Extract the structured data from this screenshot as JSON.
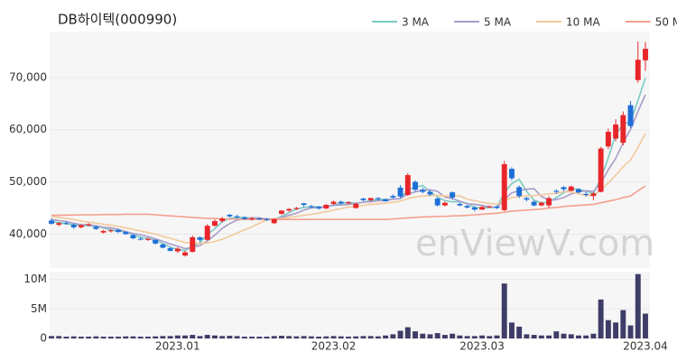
{
  "chart_data": {
    "type": "candlestick",
    "title": "DB하이텍(000990)",
    "watermark": "enViewV.com",
    "categories": [
      null,
      null,
      null,
      null,
      null,
      null,
      null,
      null,
      null,
      null,
      null,
      null,
      null,
      null,
      null,
      null,
      null,
      "2023.01",
      null,
      null,
      null,
      null,
      null,
      null,
      null,
      null,
      null,
      null,
      null,
      null,
      null,
      null,
      null,
      null,
      null,
      null,
      null,
      null,
      "2023.02",
      null,
      null,
      null,
      null,
      null,
      null,
      null,
      null,
      null,
      null,
      null,
      null,
      null,
      null,
      null,
      null,
      null,
      null,
      null,
      "2023.03",
      null,
      null,
      null,
      null,
      null,
      null,
      null,
      null,
      null,
      null,
      null,
      null,
      null,
      null,
      null,
      null,
      null,
      null,
      null,
      null,
      null,
      "2023.04"
    ],
    "ohlc": [
      [
        42600,
        43000,
        41800,
        42000
      ],
      [
        41800,
        42300,
        41500,
        42100
      ],
      [
        42100,
        42500,
        41800,
        42000
      ],
      [
        41800,
        42000,
        41000,
        41300
      ],
      [
        41300,
        41900,
        41100,
        41700
      ],
      [
        41700,
        42100,
        41500,
        41900
      ],
      [
        41400,
        41600,
        40800,
        41000
      ],
      [
        40300,
        40800,
        40100,
        40600
      ],
      [
        40600,
        41000,
        40300,
        40700
      ],
      [
        40800,
        41000,
        40200,
        40400
      ],
      [
        40400,
        40600,
        39900,
        40000
      ],
      [
        39800,
        40000,
        39000,
        39200
      ],
      [
        39100,
        39500,
        38800,
        39000
      ],
      [
        38900,
        39300,
        38700,
        39100
      ],
      [
        38900,
        39000,
        38000,
        38200
      ],
      [
        38000,
        38200,
        37300,
        37400
      ],
      [
        37300,
        37500,
        36700,
        36800
      ],
      [
        36700,
        37500,
        36400,
        37200
      ],
      [
        35900,
        36800,
        35700,
        36500
      ],
      [
        36600,
        39700,
        36500,
        39400
      ],
      [
        39400,
        39500,
        38500,
        38900
      ],
      [
        38900,
        41900,
        38800,
        41600
      ],
      [
        41600,
        42800,
        41400,
        42500
      ],
      [
        42500,
        43300,
        42200,
        43000
      ],
      [
        43700,
        43900,
        43200,
        43400
      ],
      [
        43400,
        43700,
        43000,
        43200
      ],
      [
        43200,
        43400,
        42700,
        42900
      ],
      [
        42900,
        43300,
        42600,
        43000
      ],
      [
        43000,
        43200,
        42700,
        42900
      ],
      [
        42900,
        43100,
        42500,
        42700
      ],
      [
        42100,
        43000,
        41900,
        42900
      ],
      [
        43900,
        44600,
        43700,
        44500
      ],
      [
        44500,
        45000,
        44300,
        44800
      ],
      [
        44800,
        45200,
        44600,
        45000
      ],
      [
        45900,
        46000,
        45200,
        45600
      ],
      [
        45300,
        45600,
        45000,
        45200
      ],
      [
        45200,
        45400,
        44700,
        44900
      ],
      [
        44900,
        45800,
        44800,
        45600
      ],
      [
        45800,
        46400,
        45600,
        46200
      ],
      [
        46200,
        46400,
        45700,
        45900
      ],
      [
        45900,
        46300,
        45700,
        46100
      ],
      [
        45000,
        46000,
        44900,
        45800
      ],
      [
        46800,
        47000,
        46300,
        46500
      ],
      [
        46500,
        47000,
        46300,
        46900
      ],
      [
        46900,
        47100,
        46500,
        46700
      ],
      [
        46700,
        46800,
        46200,
        46300
      ],
      [
        47300,
        47600,
        46800,
        47000
      ],
      [
        48900,
        49400,
        46900,
        47200
      ],
      [
        47500,
        51700,
        47300,
        51300
      ],
      [
        50000,
        50300,
        48200,
        48500
      ],
      [
        48500,
        48900,
        47800,
        48100
      ],
      [
        48100,
        48400,
        47300,
        47600
      ],
      [
        46800,
        47000,
        45300,
        45500
      ],
      [
        45500,
        46200,
        45300,
        46000
      ],
      [
        48000,
        48200,
        46700,
        47000
      ],
      [
        45800,
        46000,
        45300,
        45500
      ],
      [
        45400,
        45600,
        44900,
        45100
      ],
      [
        45100,
        45400,
        44400,
        44700
      ],
      [
        44700,
        45400,
        44600,
        45200
      ],
      [
        45200,
        45500,
        45000,
        45300
      ],
      [
        45300,
        45400,
        44800,
        45000
      ],
      [
        44600,
        54000,
        44400,
        53400
      ],
      [
        52500,
        52800,
        50300,
        50700
      ],
      [
        49000,
        49300,
        46900,
        47300
      ],
      [
        46900,
        47100,
        46300,
        46600
      ],
      [
        46200,
        46400,
        45300,
        45500
      ],
      [
        45500,
        46200,
        45300,
        46000
      ],
      [
        45500,
        47300,
        45000,
        46900
      ],
      [
        48300,
        48600,
        47700,
        48100
      ],
      [
        49000,
        49200,
        48200,
        48600
      ],
      [
        48300,
        49300,
        48200,
        49100
      ],
      [
        48600,
        48800,
        47800,
        48000
      ],
      [
        47700,
        48100,
        47200,
        47500
      ],
      [
        47300,
        48000,
        46500,
        47800
      ],
      [
        48100,
        56700,
        48000,
        56400
      ],
      [
        56800,
        60200,
        56300,
        59600
      ],
      [
        58300,
        62000,
        57800,
        61000
      ],
      [
        57500,
        63500,
        57000,
        62800
      ],
      [
        64700,
        65500,
        60300,
        60700
      ],
      [
        69500,
        76900,
        69000,
        73400
      ],
      [
        73300,
        76800,
        71300,
        75500
      ]
    ],
    "up_color": "#e8262a",
    "down_color": "#1d6fd8",
    "ylim": [
      33500,
      78800
    ],
    "yticks": [
      {
        "value": 40000,
        "label": "40,000"
      },
      {
        "value": 50000,
        "label": "50,000"
      },
      {
        "value": 60000,
        "label": "60,000"
      },
      {
        "value": 70000,
        "label": "70,000"
      }
    ],
    "grid": true,
    "legend": "top-right",
    "series": [
      {
        "name": "3 MA",
        "color": "#7ccac3",
        "values": [
          42400,
          42200,
          42000,
          41800,
          41700,
          41600,
          41500,
          41200,
          40800,
          40600,
          40400,
          39900,
          39400,
          39100,
          38800,
          38200,
          37500,
          37100,
          36800,
          37700,
          38300,
          40000,
          41000,
          42400,
          43000,
          43200,
          43200,
          43000,
          42900,
          42900,
          42800,
          43400,
          44100,
          44800,
          45100,
          45300,
          45200,
          45200,
          45600,
          45900,
          46100,
          45900,
          46100,
          46400,
          46700,
          46600,
          46700,
          46800,
          48500,
          49000,
          49300,
          48100,
          47100,
          46400,
          46200,
          46200,
          45900,
          45100,
          45000,
          45100,
          45200,
          47900,
          49700,
          50500,
          48200,
          46500,
          46000,
          46100,
          47000,
          47900,
          48600,
          48600,
          48200,
          47800,
          50600,
          54600,
          59000,
          61100,
          61500,
          65600,
          69900
        ]
      },
      {
        "name": "5 MA",
        "color": "#a99bc9",
        "values": [
          42800,
          42600,
          42400,
          42100,
          41800,
          41800,
          41600,
          41300,
          41200,
          40900,
          40500,
          40100,
          39900,
          39500,
          39100,
          38600,
          38100,
          37700,
          37200,
          37500,
          37800,
          38700,
          39800,
          41100,
          42000,
          42700,
          43000,
          43100,
          43100,
          42900,
          42900,
          43200,
          43600,
          44000,
          44600,
          45000,
          45100,
          45300,
          45500,
          45600,
          45700,
          45900,
          46100,
          46200,
          46400,
          46400,
          46700,
          46800,
          47700,
          48100,
          48400,
          48500,
          48200,
          47100,
          46800,
          46300,
          45800,
          45700,
          45500,
          45200,
          45100,
          46700,
          47900,
          48300,
          48600,
          48700,
          47200,
          46500,
          46600,
          47000,
          47700,
          48100,
          48300,
          48200,
          49800,
          52300,
          54500,
          57500,
          60100,
          63500,
          66700
        ]
      },
      {
        "name": "10 MA",
        "color": "#f3c99b",
        "values": [
          43400,
          43200,
          43000,
          42800,
          42500,
          42300,
          42100,
          41900,
          41700,
          41500,
          41200,
          40900,
          40600,
          40300,
          40000,
          39600,
          39200,
          38800,
          38400,
          38300,
          38200,
          38300,
          38600,
          39000,
          39600,
          40200,
          40800,
          41400,
          42100,
          42700,
          42900,
          43000,
          43200,
          43400,
          43600,
          43800,
          44000,
          44300,
          44600,
          44900,
          45200,
          45300,
          45500,
          45700,
          45800,
          45900,
          46100,
          46300,
          46800,
          47100,
          47300,
          47400,
          47400,
          47300,
          47400,
          47300,
          46700,
          46400,
          46100,
          45900,
          45700,
          46500,
          47000,
          47200,
          47300,
          47400,
          47500,
          47700,
          47800,
          48100,
          48100,
          47700,
          47400,
          47400,
          48400,
          49800,
          51300,
          52900,
          54200,
          56600,
          59300
        ]
      },
      {
        "name": "50 MA",
        "color": "#f4a08c",
        "values": [
          43600,
          43600,
          43650,
          43650,
          43700,
          43700,
          43700,
          43750,
          43750,
          43750,
          43800,
          43800,
          43800,
          43800,
          43700,
          43600,
          43500,
          43400,
          43300,
          43200,
          43100,
          43000,
          43000,
          42900,
          42900,
          42900,
          42800,
          42800,
          42800,
          42800,
          42800,
          42800,
          42800,
          42800,
          42800,
          42800,
          42800,
          42800,
          42800,
          42800,
          42800,
          42800,
          42800,
          42800,
          42800,
          42800,
          42900,
          43000,
          43100,
          43200,
          43300,
          43300,
          43400,
          43400,
          43500,
          43500,
          43600,
          43700,
          43800,
          43900,
          44000,
          44200,
          44400,
          44500,
          44600,
          44700,
          44800,
          45000,
          45100,
          45300,
          45400,
          45500,
          45600,
          45700,
          46000,
          46300,
          46600,
          47000,
          47300,
          48300,
          49200
        ]
      }
    ],
    "volume": {
      "color": "#3e3d68",
      "values": [
        400000,
        400000,
        300000,
        350000,
        300000,
        300000,
        350000,
        300000,
        300000,
        300000,
        350000,
        350000,
        300000,
        300000,
        350000,
        400000,
        400000,
        500000,
        500000,
        600000,
        400000,
        600000,
        500000,
        400000,
        450000,
        400000,
        300000,
        300000,
        300000,
        300000,
        400000,
        450000,
        400000,
        350000,
        400000,
        350000,
        300000,
        350000,
        400000,
        350000,
        300000,
        350000,
        400000,
        400000,
        350000,
        500000,
        700000,
        1300000,
        1900000,
        1200000,
        800000,
        700000,
        900000,
        600000,
        800000,
        500000,
        400000,
        400000,
        500000,
        400000,
        500000,
        9300000,
        2700000,
        2000000,
        700000,
        600000,
        500000,
        500000,
        1200000,
        800000,
        700000,
        500000,
        500000,
        800000,
        6600000,
        3100000,
        2700000,
        4800000,
        2200000,
        10900000,
        4200000
      ],
      "ylim": [
        0,
        11000000
      ],
      "yticks": [
        0,
        {
          "value": 5000000,
          "label": "5M"
        },
        {
          "value": 10000000,
          "label": "10M"
        }
      ]
    }
  }
}
